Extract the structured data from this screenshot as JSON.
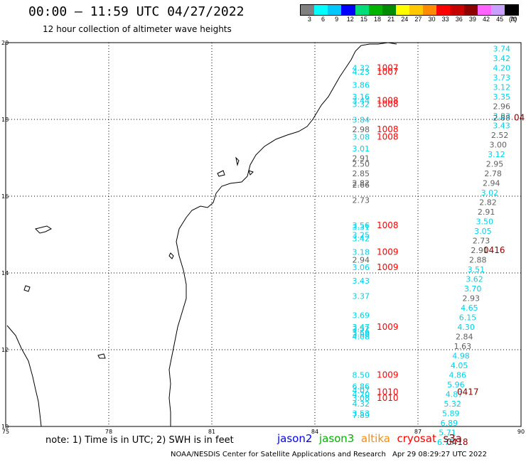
{
  "header": {
    "title": "00:00 – 11:59 UTC 04/27/2022",
    "subtitle": "12 hour collection of altimeter wave heights"
  },
  "legend": {
    "unit": "(ft)",
    "bins": [
      {
        "label": "3",
        "color": "#808080"
      },
      {
        "label": "6",
        "color": "#00ffff"
      },
      {
        "label": "9",
        "color": "#00c8ff"
      },
      {
        "label": "12",
        "color": "#0000ff"
      },
      {
        "label": "15",
        "color": "#00dc78"
      },
      {
        "label": "18",
        "color": "#00b400"
      },
      {
        "label": "21",
        "color": "#008c00"
      },
      {
        "label": "24",
        "color": "#ffff00"
      },
      {
        "label": "27",
        "color": "#ffc800"
      },
      {
        "label": "30",
        "color": "#ff8c00"
      },
      {
        "label": "33",
        "color": "#ff0000"
      },
      {
        "label": "36",
        "color": "#c80000"
      },
      {
        "label": "39",
        "color": "#8c0000"
      },
      {
        "label": "42",
        "color": "#ff64ff"
      },
      {
        "label": "45",
        "color": "#c8a0ff"
      },
      {
        "label": "70",
        "color": "#000000"
      }
    ]
  },
  "axes": {
    "x_labels": [
      "75",
      "78",
      "81",
      "84",
      "87",
      "90"
    ],
    "y_labels": [
      "20",
      "18",
      "16",
      "14",
      "12",
      "10"
    ],
    "lon_range": [
      75,
      90
    ],
    "lat_range": [
      10,
      20
    ]
  },
  "colors": {
    "cyan": "#00d2e6",
    "gray": "#606060",
    "red": "#ff0000",
    "darkred": "#8c0000"
  },
  "track_a": {
    "heights": [
      {
        "v": "4.32",
        "lat": 19.27,
        "c": "cyan"
      },
      {
        "v": "4.23",
        "lat": 19.17,
        "c": "cyan"
      },
      {
        "v": "3.86",
        "lat": 18.82,
        "c": "cyan"
      },
      {
        "v": "3.16",
        "lat": 18.52,
        "c": "cyan"
      },
      {
        "v": "3.44",
        "lat": 18.42,
        "c": "cyan"
      },
      {
        "v": "3.32",
        "lat": 18.32,
        "c": "cyan"
      },
      {
        "v": "3.84",
        "lat": 17.92,
        "c": "cyan"
      },
      {
        "v": "2.98",
        "lat": 17.67,
        "c": "gray"
      },
      {
        "v": "3.08",
        "lat": 17.47,
        "c": "cyan"
      },
      {
        "v": "3.01",
        "lat": 17.17,
        "c": "cyan"
      },
      {
        "v": "2.91",
        "lat": 16.92,
        "c": "gray"
      },
      {
        "v": "2.50",
        "lat": 16.77,
        "c": "gray"
      },
      {
        "v": "2.85",
        "lat": 16.52,
        "c": "gray"
      },
      {
        "v": "2.82",
        "lat": 16.27,
        "c": "gray"
      },
      {
        "v": "2.66",
        "lat": 16.22,
        "c": "gray"
      },
      {
        "v": "2.73",
        "lat": 15.82,
        "c": "gray"
      },
      {
        "v": "3.56",
        "lat": 15.17,
        "c": "cyan"
      },
      {
        "v": "3.31",
        "lat": 15.12,
        "c": "cyan"
      },
      {
        "v": "3.25",
        "lat": 14.92,
        "c": "cyan"
      },
      {
        "v": "3.42",
        "lat": 14.82,
        "c": "cyan"
      },
      {
        "v": "3.18",
        "lat": 14.47,
        "c": "cyan"
      },
      {
        "v": "2.94",
        "lat": 14.27,
        "c": "gray"
      },
      {
        "v": "3.06",
        "lat": 14.07,
        "c": "cyan"
      },
      {
        "v": "3.43",
        "lat": 13.72,
        "c": "cyan"
      },
      {
        "v": "3.37",
        "lat": 13.32,
        "c": "cyan"
      },
      {
        "v": "3.69",
        "lat": 12.82,
        "c": "cyan"
      },
      {
        "v": "3.47",
        "lat": 12.52,
        "c": "cyan"
      },
      {
        "v": "3.52",
        "lat": 12.47,
        "c": "cyan"
      },
      {
        "v": "3.59",
        "lat": 12.37,
        "c": "cyan"
      },
      {
        "v": "3.90",
        "lat": 12.32,
        "c": "cyan"
      },
      {
        "v": "4.08",
        "lat": 12.27,
        "c": "cyan"
      },
      {
        "v": "8.50",
        "lat": 11.27,
        "c": "cyan"
      },
      {
        "v": "6.86",
        "lat": 10.97,
        "c": "cyan"
      },
      {
        "v": "4.07",
        "lat": 10.87,
        "c": "cyan"
      },
      {
        "v": "4.20",
        "lat": 10.77,
        "c": "cyan"
      },
      {
        "v": "3.08",
        "lat": 10.67,
        "c": "cyan"
      },
      {
        "v": "4.32",
        "lat": 10.52,
        "c": "cyan"
      },
      {
        "v": "3.53",
        "lat": 10.27,
        "c": "cyan"
      },
      {
        "v": "7.89",
        "lat": 10.22,
        "c": "cyan"
      }
    ],
    "times": [
      {
        "v": "1007",
        "lat": 19.27
      },
      {
        "v": "1007",
        "lat": 19.17
      },
      {
        "v": "1008",
        "lat": 18.42
      },
      {
        "v": "1008",
        "lat": 18.32
      },
      {
        "v": "1008",
        "lat": 17.67
      },
      {
        "v": "1008",
        "lat": 17.47
      },
      {
        "v": "1008",
        "lat": 15.17
      },
      {
        "v": "1009",
        "lat": 14.47
      },
      {
        "v": "1009",
        "lat": 14.07
      },
      {
        "v": "1009",
        "lat": 12.52
      },
      {
        "v": "1009",
        "lat": 11.27
      },
      {
        "v": "1010",
        "lat": 10.82
      },
      {
        "v": "1010",
        "lat": 10.67
      }
    ]
  },
  "track_b": {
    "heights": [
      {
        "v": "3.74",
        "lat": 19.77,
        "c": "cyan"
      },
      {
        "v": "3.42",
        "lat": 19.52,
        "c": "cyan"
      },
      {
        "v": "4.20",
        "lat": 19.27,
        "c": "cyan"
      },
      {
        "v": "3.73",
        "lat": 19.02,
        "c": "cyan"
      },
      {
        "v": "3.12",
        "lat": 18.77,
        "c": "cyan"
      },
      {
        "v": "3.35",
        "lat": 18.52,
        "c": "cyan"
      },
      {
        "v": "2.96",
        "lat": 18.27,
        "c": "gray"
      },
      {
        "v": "3.83",
        "lat": 18.02,
        "c": "cyan"
      },
      {
        "v": "2.88",
        "lat": 17.97,
        "c": "gray"
      },
      {
        "v": "3.43",
        "lat": 17.77,
        "c": "cyan"
      },
      {
        "v": "2.52",
        "lat": 17.52,
        "c": "gray"
      },
      {
        "v": "3.00",
        "lat": 17.27,
        "c": "gray"
      },
      {
        "v": "3.12",
        "lat": 17.02,
        "c": "cyan"
      },
      {
        "v": "2.95",
        "lat": 16.77,
        "c": "gray"
      },
      {
        "v": "2.78",
        "lat": 16.52,
        "c": "gray"
      },
      {
        "v": "2.94",
        "lat": 16.27,
        "c": "gray"
      },
      {
        "v": "3.02",
        "lat": 16.02,
        "c": "cyan"
      },
      {
        "v": "2.82",
        "lat": 15.77,
        "c": "gray"
      },
      {
        "v": "2.91",
        "lat": 15.52,
        "c": "gray"
      },
      {
        "v": "3.50",
        "lat": 15.27,
        "c": "cyan"
      },
      {
        "v": "3.05",
        "lat": 15.02,
        "c": "cyan"
      },
      {
        "v": "2.73",
        "lat": 14.77,
        "c": "gray"
      },
      {
        "v": "2.91",
        "lat": 14.52,
        "c": "gray"
      },
      {
        "v": "2.88",
        "lat": 14.27,
        "c": "gray"
      },
      {
        "v": "3.51",
        "lat": 14.02,
        "c": "cyan"
      },
      {
        "v": "3.62",
        "lat": 13.77,
        "c": "cyan"
      },
      {
        "v": "3.70",
        "lat": 13.52,
        "c": "cyan"
      },
      {
        "v": "2.93",
        "lat": 13.27,
        "c": "gray"
      },
      {
        "v": "4.65",
        "lat": 13.02,
        "c": "cyan"
      },
      {
        "v": "6.15",
        "lat": 12.77,
        "c": "cyan"
      },
      {
        "v": "4.30",
        "lat": 12.52,
        "c": "cyan"
      },
      {
        "v": "2.84",
        "lat": 12.27,
        "c": "gray"
      },
      {
        "v": "1.63",
        "lat": 12.02,
        "c": "gray"
      },
      {
        "v": "4.98",
        "lat": 11.77,
        "c": "cyan"
      },
      {
        "v": "4.05",
        "lat": 11.52,
        "c": "cyan"
      },
      {
        "v": "4.86",
        "lat": 11.27,
        "c": "cyan"
      },
      {
        "v": "5.96",
        "lat": 11.02,
        "c": "cyan"
      },
      {
        "v": "4.87",
        "lat": 10.77,
        "c": "cyan"
      },
      {
        "v": "5.32",
        "lat": 10.52,
        "c": "cyan"
      },
      {
        "v": "5.89",
        "lat": 10.27,
        "c": "cyan"
      },
      {
        "v": "6.89",
        "lat": 10.02,
        "c": "cyan"
      },
      {
        "v": "5.71",
        "lat": 9.77,
        "c": "cyan"
      },
      {
        "v": "6.73",
        "lat": 9.52,
        "c": "cyan"
      }
    ],
    "times": [
      {
        "v": "04",
        "lat": 17.97
      },
      {
        "v": "0416",
        "lat": 14.52
      },
      {
        "v": "0417",
        "lat": 10.82
      },
      {
        "v": "0418",
        "lat": 9.52
      }
    ]
  },
  "footer": {
    "note": "note: 1) Time is in UTC; 2) SWH is in feet",
    "satellites": [
      {
        "name": "jason2",
        "color": "#0000ff"
      },
      {
        "name": "jason3",
        "color": "#00b400"
      },
      {
        "name": "altika",
        "color": "#ff8c00"
      },
      {
        "name": "cryosat",
        "color": "#ff0000"
      },
      {
        "name": "s3a",
        "color": "#8c0000"
      }
    ],
    "credit": "NOAA/NESDIS Center for Satellite Applications and Research",
    "timestamp": "Apr 29 08:29:27 UTC 2022"
  }
}
